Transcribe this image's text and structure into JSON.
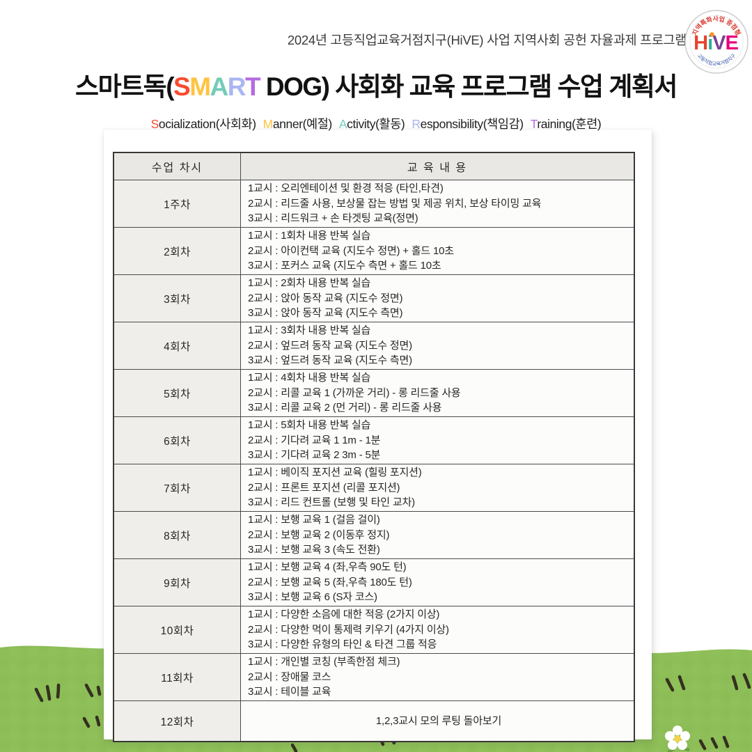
{
  "header_line": "2024년 고등직업교육거점지구(HiVE) 사업 지역사회 공헌 자율과제 프로그램",
  "title": {
    "prefix": "스마트독(",
    "smart_letters": [
      {
        "ch": "S",
        "color": "#f94b30"
      },
      {
        "ch": "M",
        "color": "#ffc340"
      },
      {
        "ch": "A",
        "color": "#72ccb8"
      },
      {
        "ch": "R",
        "color": "#a9b6f2"
      },
      {
        "ch": "T",
        "color": "#b36be0"
      }
    ],
    "mid": " DOG) ",
    "suffix": "사회화 교육 프로그램 수업 계획서"
  },
  "subtitle": [
    {
      "initial": "S",
      "rest": "ocialization(사회화)",
      "color": "#f94b30"
    },
    {
      "initial": "M",
      "rest": "anner(예절)",
      "color": "#ffc340"
    },
    {
      "initial": "A",
      "rest": "ctivity(활동)",
      "color": "#72ccb8"
    },
    {
      "initial": "R",
      "rest": "esponsibility(책임감)",
      "color": "#a9b6f2"
    },
    {
      "initial": "T",
      "rest": "raining(훈련)",
      "color": "#b36be0"
    }
  ],
  "logo": {
    "top_arc": "지역특화사업 중점형",
    "bottom_arc": "고등직업교육거점지구",
    "letters": [
      {
        "ch": "H",
        "color": "#e8432d"
      },
      {
        "ch": "i",
        "color": "#2fae9b"
      },
      {
        "ch": "V",
        "color": "#7d3f98"
      },
      {
        "ch": "E",
        "color": "#e5007d"
      }
    ],
    "dot_color": "#f7941d",
    "top_arc_color": "#d9352a",
    "bottom_arc_color": "#2b4ea0"
  },
  "table": {
    "headers": [
      "수업 차시",
      "교 육 내 용"
    ],
    "rows": [
      {
        "session": "1주차",
        "lines": [
          "1교시 : 오리엔테이션 및 환경 적응 (타인,타견)",
          "2교시 : 리드줄 사용, 보상물 잡는 방법 및 제공 위치, 보상 타이밍 교육",
          "3교시 : 리드워크 + 손 타겟팅 교육(정면)"
        ]
      },
      {
        "session": "2회차",
        "lines": [
          "1교시 : 1회차 내용 반복 실습",
          "2교시 : 아이컨택 교육 (지도수 정면) + 홀드 10초",
          "3교시 : 포커스 교육 (지도수 측면 + 홀드 10초"
        ]
      },
      {
        "session": "3회차",
        "lines": [
          "1교시 : 2회차 내용 반복 실습",
          "2교시 : 앉아 동작 교육 (지도수 정면)",
          "3교시 : 앉아 동작 교육 (지도수 측면)"
        ]
      },
      {
        "session": "4회차",
        "lines": [
          "1교시 : 3회차 내용 반복 실습",
          "2교시 : 엎드려 동작 교육 (지도수 정면)",
          "3교시 : 엎드려 동작 교육 (지도수 측면)"
        ]
      },
      {
        "session": "5회차",
        "lines": [
          "1교시 : 4회차 내용 반복 실습",
          "2교시 : 리콜 교육 1 (가까운 거리) - 롱 리드줄 사용",
          "3교시 : 리콜 교육 2 (먼 거리) - 롱 리드줄 사용"
        ]
      },
      {
        "session": "6회차",
        "lines": [
          "1교시 : 5회차 내용 반복 실습",
          "2교시 : 기다려 교육 1 1m - 1분",
          "3교시 : 기다려 교육 2 3m - 5분"
        ]
      },
      {
        "session": "7회차",
        "lines": [
          "1교시 : 베이직 포지션 교육 (힐링 포지션)",
          "2교시 : 프론트 포지션 (리콜 포지션)",
          "3교시 : 리드 컨트롤 (보행 및 타인 교차)"
        ]
      },
      {
        "session": "8회차",
        "lines": [
          "1교시 : 보행 교육 1 (걸음 걸이)",
          "2교시 : 보행 교육 2 (이동후 정지)",
          "3교시 : 보행 교육 3 (속도 전환)"
        ]
      },
      {
        "session": "9회차",
        "lines": [
          "1교시 : 보행 교육 4 (좌,우측 90도 턴)",
          "2교시 : 보행 교육 5 (좌,우측 180도 턴)",
          "3교시 : 보행 교육 6 (S자 코스)"
        ]
      },
      {
        "session": "10회차",
        "lines": [
          "1교시 : 다양한 소음에 대한 적응 (2가지 이상)",
          "2교시 : 다양한 먹이 통제력 키우기 (4가지 이상)",
          "3교시 : 다양한 유형의 타인 & 타견 그룹 적응"
        ]
      },
      {
        "session": "11회차",
        "lines": [
          "1교시 : 개인별 코칭 (부족한점 체크)",
          "2교시 : 장애물 코스",
          "3교시 : 테이블 교육"
        ]
      },
      {
        "session": "12회차",
        "centered": true,
        "lines": [
          "1,2,3교시 모의 루팅 돌아보기"
        ]
      }
    ]
  },
  "colors": {
    "grass_green": "#8dbe57",
    "grass_dark_patch": "#82b34c",
    "grass_light_patch": "#97c763",
    "blade_stroke": "#35301f",
    "flower_petal": "#ffffff",
    "flower_center": "#f3d34a",
    "leaf_green": "#6a9a44"
  }
}
